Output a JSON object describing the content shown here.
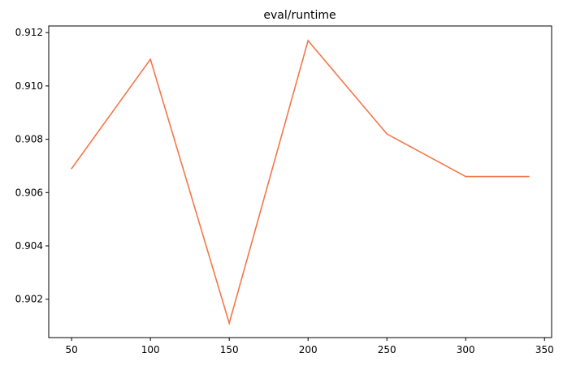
{
  "chart_data": {
    "type": "line",
    "title": "eval/runtime",
    "xlabel": "",
    "ylabel": "",
    "x": [
      50,
      100,
      150,
      200,
      250,
      300,
      340
    ],
    "series": [
      {
        "values": [
          0.9069,
          0.911,
          0.9011,
          0.9117,
          0.9082,
          0.9066,
          0.9066
        ],
        "color": "#f4774a"
      }
    ],
    "xlim": [
      35.5,
      354.5
    ],
    "ylim": [
      0.90056,
      0.91225
    ],
    "xticks": [
      50,
      100,
      150,
      200,
      250,
      300,
      350
    ],
    "xtick_labels": [
      "50",
      "100",
      "150",
      "200",
      "250",
      "300",
      "350"
    ],
    "yticks": [
      0.902,
      0.904,
      0.906,
      0.908,
      0.91,
      0.912
    ],
    "ytick_labels": [
      "0.902",
      "0.904",
      "0.906",
      "0.908",
      "0.910",
      "0.912"
    ],
    "grid": false,
    "legend": "none"
  }
}
